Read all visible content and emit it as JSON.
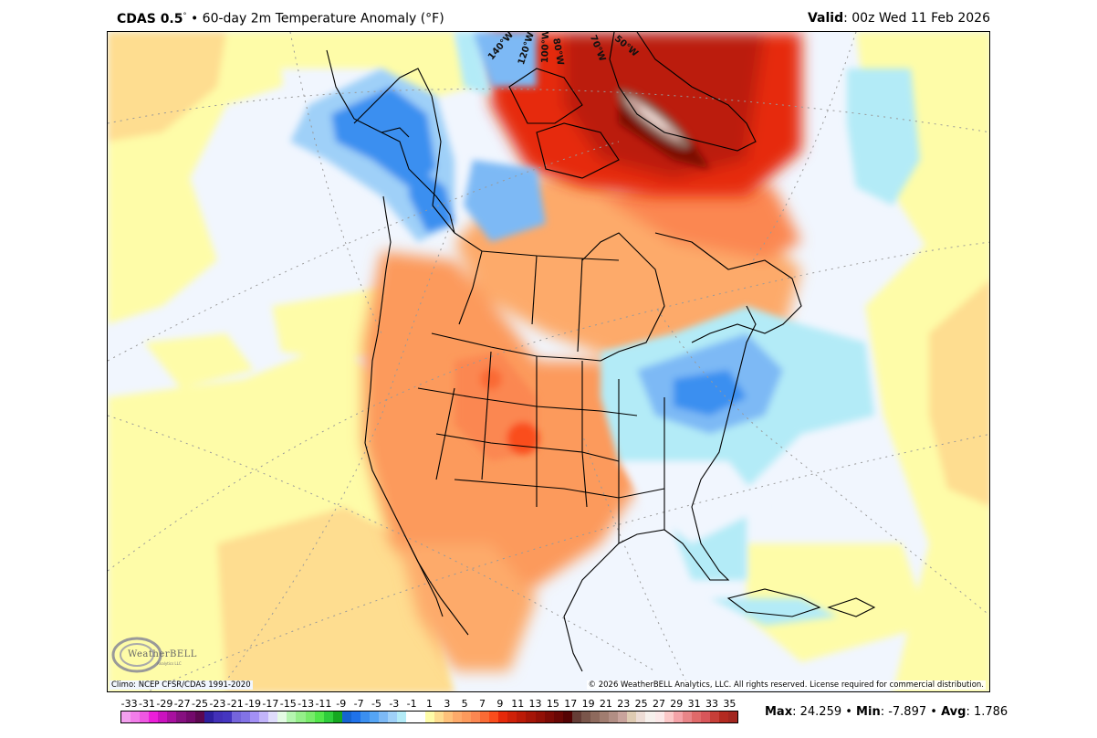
{
  "header": {
    "model": "CDAS 0.5",
    "degree_symbol": "°",
    "separator": "•",
    "product": "60-day 2m Temperature Anomaly (°F)",
    "valid_label": "Valid",
    "valid_value": ": 00z Wed 11 Feb 2026"
  },
  "map": {
    "projection": "polar stereographic, North America",
    "longitude_labels": [
      "140°W",
      "120°W",
      "100°W",
      "80°W",
      "70°W",
      "50°W"
    ],
    "climo_text": "Climo: NCEP CFSR/CDAS 1991-2020",
    "copyright_text": "© 2026 WeatherBELL Analytics, LLC. All rights reserved. License required for commercial distribution.",
    "logo_text": "WeatherBELL",
    "logo_sub": "Analytics LLC",
    "regions": [
      {
        "name": "Alaska / Yukon",
        "anomaly": "cold",
        "range_f": "-1 to -7"
      },
      {
        "name": "Greenland / Baffin Bay",
        "anomaly": "very warm",
        "range_f": "+11 to +24"
      },
      {
        "name": "Eastern Canada / Hudson Bay",
        "anomaly": "warm",
        "range_f": "+3 to +9"
      },
      {
        "name": "Western & Central US / Rockies",
        "anomaly": "warm",
        "range_f": "+5 to +11"
      },
      {
        "name": "Great Lakes / Northeast US / Mid-Atlantic",
        "anomaly": "cold",
        "range_f": "-1 to -7"
      },
      {
        "name": "Southeast US",
        "anomaly": "near normal",
        "range_f": "-1 to +1"
      },
      {
        "name": "Florida / Cuba",
        "anomaly": "slightly cold",
        "range_f": "-1 to -3"
      },
      {
        "name": "North Atlantic",
        "anomaly": "mixed",
        "range_f": "-1 to +5"
      },
      {
        "name": "NE Pacific / Gulf of Alaska",
        "anomaly": "near normal",
        "range_f": "-1 to +1"
      }
    ]
  },
  "colorbar": {
    "labels": [
      "-33",
      "-31",
      "-29",
      "-27",
      "-25",
      "-23",
      "-21",
      "-19",
      "-17",
      "-15",
      "-13",
      "-11",
      "-9",
      "-7",
      "-5",
      "-3",
      "-1",
      "1",
      "3",
      "5",
      "7",
      "9",
      "11",
      "13",
      "15",
      "17",
      "19",
      "21",
      "23",
      "25",
      "27",
      "29",
      "31",
      "33",
      "35"
    ],
    "colors": [
      "#f3a0ee",
      "#f27de9",
      "#ef57e2",
      "#ec1ed9",
      "#cb12bf",
      "#a8109f",
      "#861080",
      "#730a6c",
      "#5c0750",
      "#2e1f9e",
      "#4230b8",
      "#4536c0",
      "#7565dc",
      "#8273e6",
      "#a390f5",
      "#c2b4fa",
      "#dfdcfb",
      "#e4fbe4",
      "#b5f5b0",
      "#95ef8a",
      "#78eb6a",
      "#52e64a",
      "#2ecd3b",
      "#15a820",
      "#1564d2",
      "#1f72ea",
      "#3b8ff0",
      "#55a5f5",
      "#7db9f5",
      "#9fd0f8",
      "#b3ebf7",
      "#ffffff",
      "#ffffff",
      "#fefca8",
      "#fedd90",
      "#fec17a",
      "#fdaa6a",
      "#fc9a5c",
      "#fb8751",
      "#fa6b35",
      "#fa4d1c",
      "#e6290a",
      "#cf2108",
      "#bb1a07",
      "#a51507",
      "#921006",
      "#7d0b05",
      "#6a0704",
      "#540303",
      "#653d36",
      "#7a564b",
      "#8e6a5d",
      "#a17d70",
      "#b28e84",
      "#c9a39c",
      "#dfcbb2",
      "#eddcd5",
      "#f6f0ec",
      "#fbe8e8",
      "#fbc8c8",
      "#f4a3a8",
      "#e88588",
      "#e06a6a",
      "#d8565a",
      "#c73f38",
      "#b32a20",
      "#a3261f"
    ]
  },
  "stats": {
    "max_label": "Max",
    "max_value": ": 24.259",
    "sep1": " • ",
    "min_label": "Min",
    "min_value": ": -7.897",
    "sep2": " • ",
    "avg_label": "Avg",
    "avg_value": ": 1.786"
  }
}
